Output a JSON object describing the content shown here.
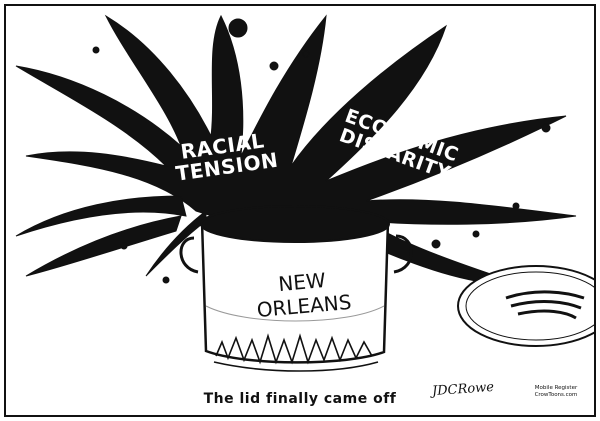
{
  "cartoon": {
    "label_left": "Racial Tension",
    "label_right": "Economic Disparity",
    "pot_label": "New Orleans",
    "caption": "The lid finally came off",
    "signature": "JDCRowe",
    "credit_line1": "Mobile Register",
    "credit_line2": "CrowToons.com"
  },
  "colors": {
    "ink": "#111111",
    "paper": "#ffffff"
  }
}
